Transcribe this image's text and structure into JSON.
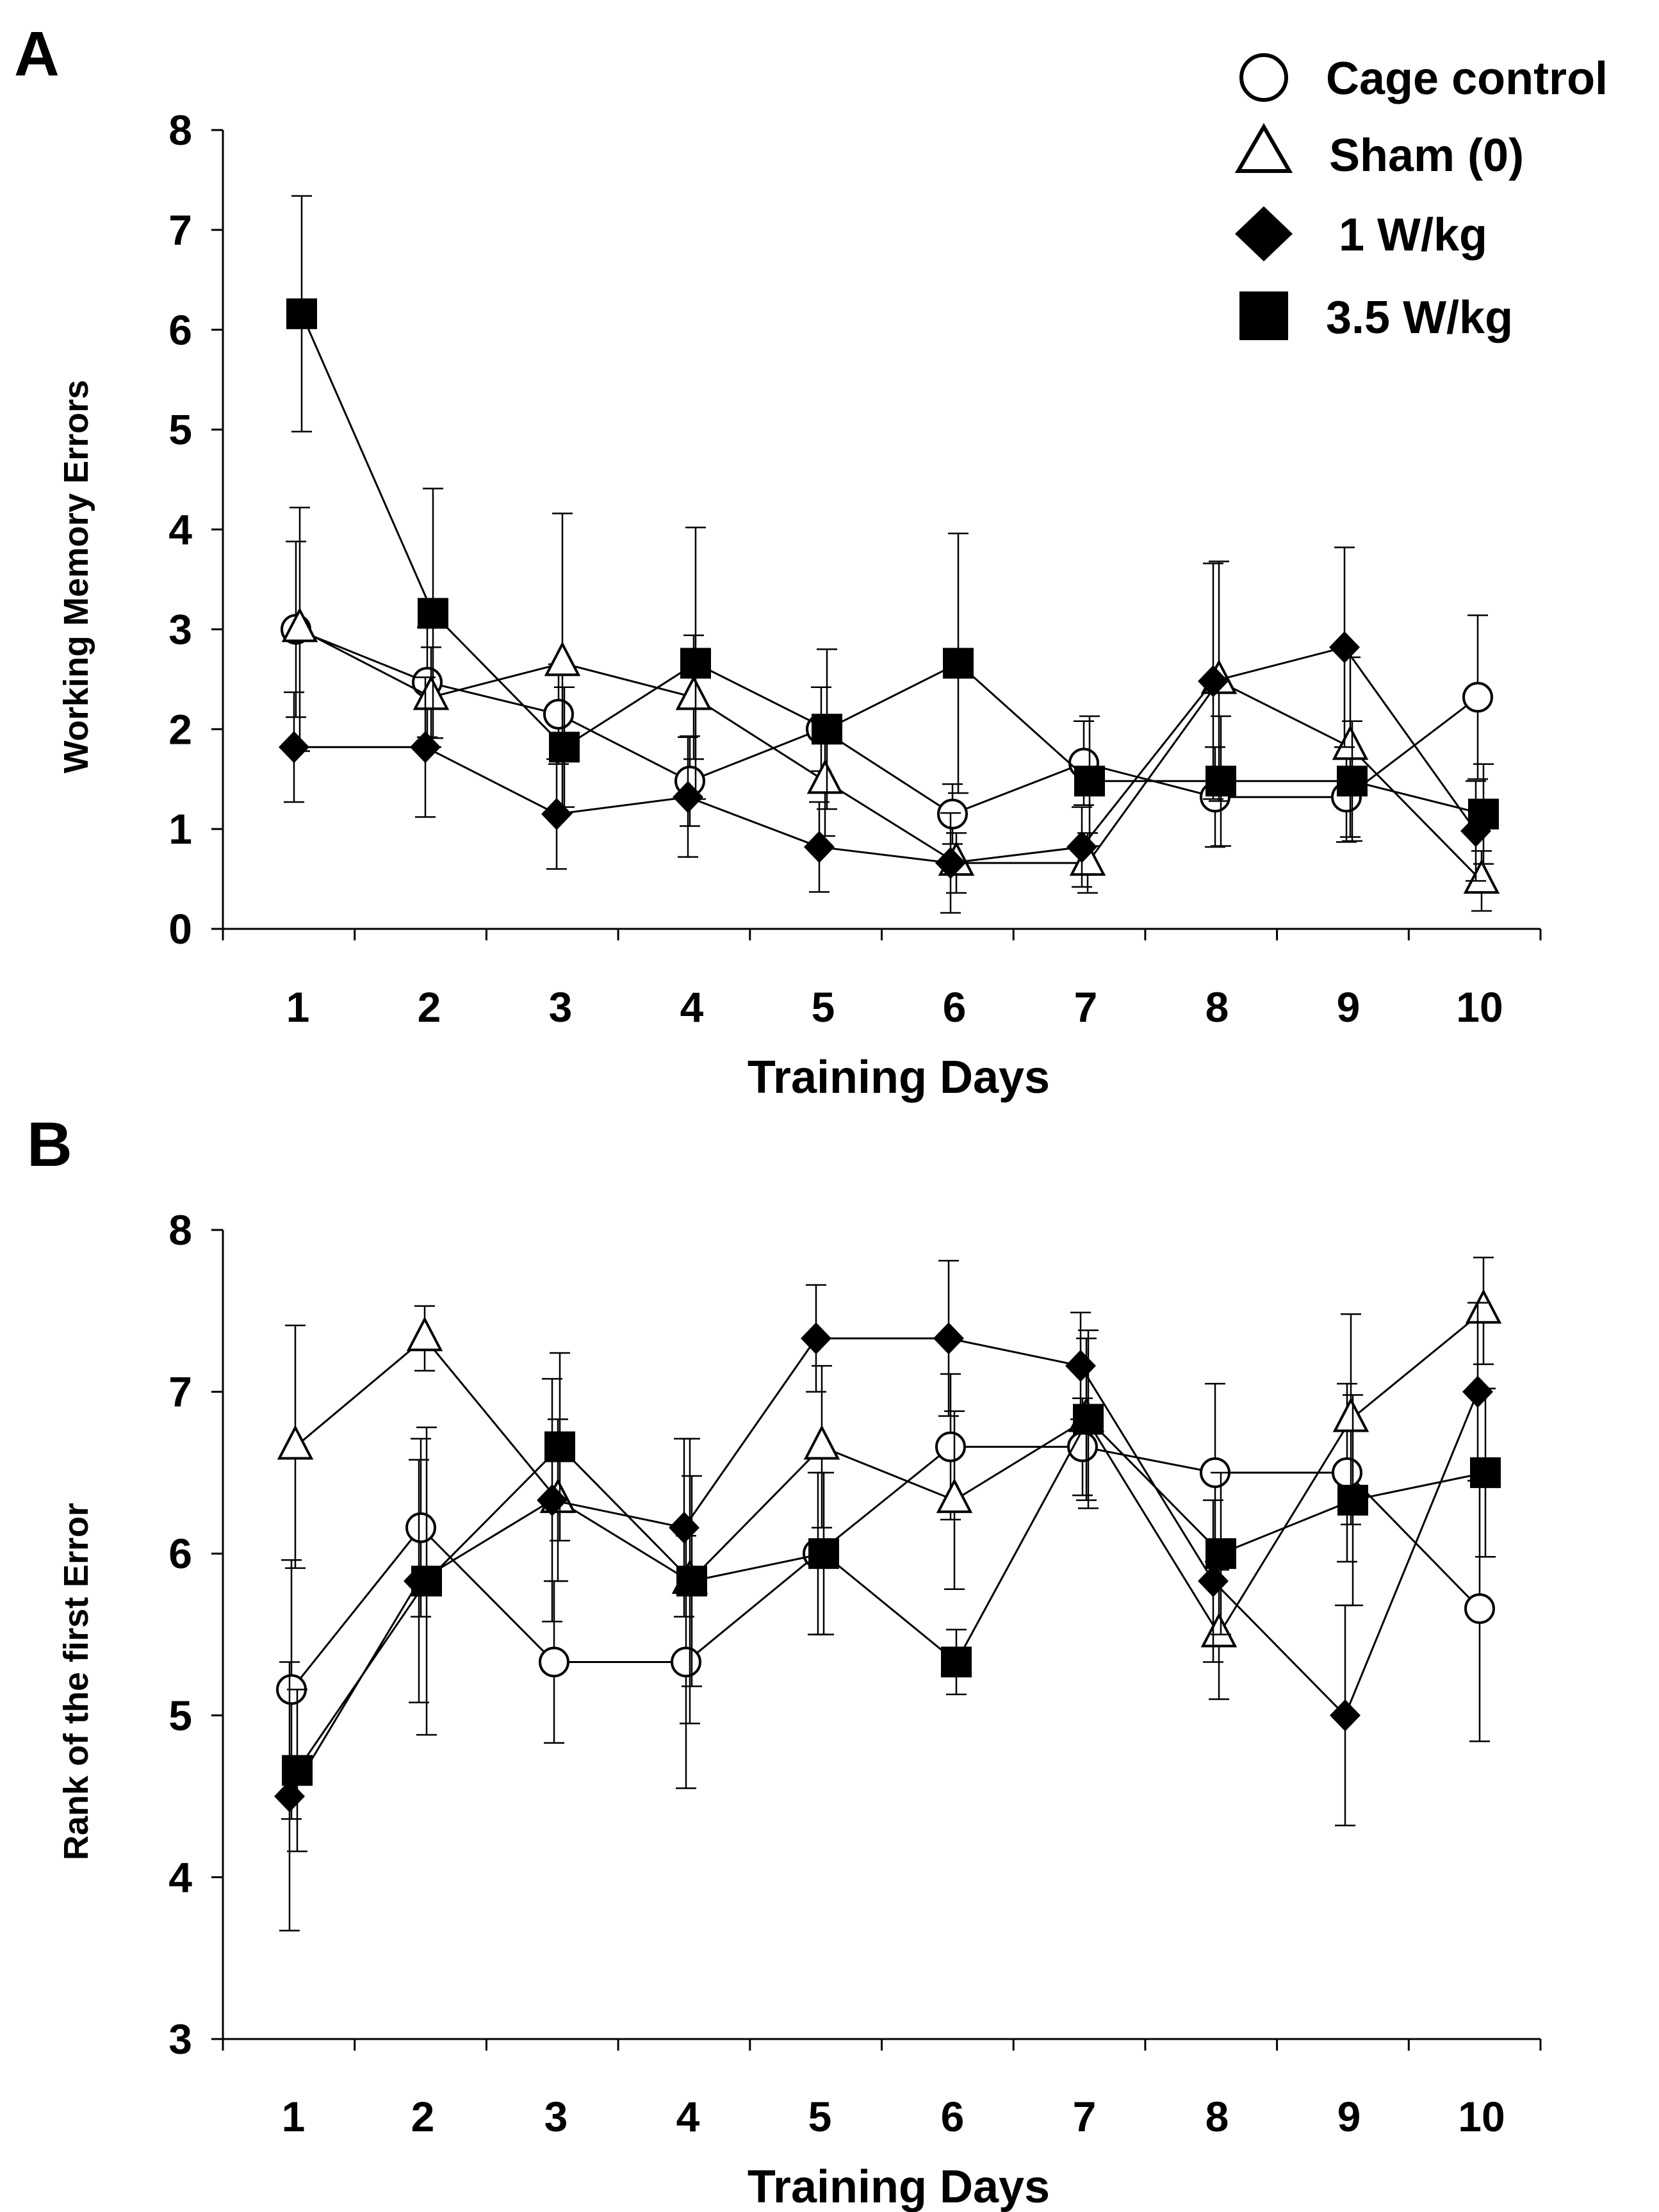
{
  "legend": [
    {
      "key": "cage",
      "label": "Cage control",
      "marker": "circle"
    },
    {
      "key": "sham",
      "label": "Sham (0)",
      "marker": "triangle"
    },
    {
      "key": "w1",
      "label": "1 W/kg",
      "marker": "diamond"
    },
    {
      "key": "w35",
      "label": "3.5 W/kg",
      "marker": "square"
    }
  ],
  "colors": {
    "marker_fill_open": "#ffffff",
    "marker_fill_solid": "#000000",
    "line": "#000000"
  },
  "chart_data": [
    {
      "type": "line",
      "panel": "A",
      "xlabel": "Training Days",
      "ylabel": "Working Memory Errors",
      "categories": [
        "1",
        "2",
        "3",
        "4",
        "5",
        "6",
        "7",
        "8",
        "9",
        "10"
      ],
      "yticks": [
        "0",
        "1",
        "2",
        "3",
        "4",
        "5",
        "6",
        "7",
        "8"
      ],
      "ylim": [
        0,
        8
      ],
      "grid": false,
      "legend_position": "top-right",
      "series": [
        {
          "name": "Cage control",
          "marker": "circle",
          "values": [
            3.0,
            2.47,
            2.15,
            1.48,
            2.0,
            1.15,
            1.66,
            1.32,
            1.32,
            2.32
          ],
          "err": [
            0.88,
            0.55,
            0.5,
            0.45,
            0.42,
            0.3,
            0.42,
            0.5,
            0.45,
            0.82
          ]
        },
        {
          "name": "Sham (0)",
          "marker": "triangle",
          "values": [
            3.0,
            2.32,
            2.66,
            2.32,
            1.48,
            0.66,
            0.66,
            2.48,
            1.82,
            0.48
          ],
          "err": [
            1.22,
            0.5,
            1.5,
            0.62,
            0.55,
            0.3,
            0.3,
            1.2,
            0.9,
            0.3
          ]
        },
        {
          "name": "1 W/kg",
          "marker": "diamond",
          "values": [
            1.82,
            1.82,
            1.15,
            1.32,
            0.82,
            0.66,
            0.82,
            2.48,
            2.82,
            0.98
          ],
          "err": [
            0.55,
            0.7,
            0.55,
            0.6,
            0.45,
            0.5,
            0.4,
            1.18,
            1.0,
            0.5
          ]
        },
        {
          "name": "3.5 W/kg",
          "marker": "square",
          "values": [
            6.16,
            3.16,
            1.82,
            2.66,
            2.0,
            2.66,
            1.48,
            1.48,
            1.48,
            1.15
          ],
          "err": [
            1.18,
            1.25,
            0.6,
            1.36,
            0.8,
            1.3,
            0.65,
            0.65,
            0.6,
            0.5
          ]
        }
      ]
    },
    {
      "type": "line",
      "panel": "B",
      "xlabel": "Training Days",
      "ylabel": "Rank of the first Error",
      "categories": [
        "1",
        "2",
        "3",
        "4",
        "5",
        "6",
        "7",
        "8",
        "9",
        "10"
      ],
      "yticks": [
        "3",
        "4",
        "5",
        "6",
        "7",
        "8"
      ],
      "ylim": [
        3,
        8
      ],
      "grid": false,
      "series": [
        {
          "name": "Cage control",
          "marker": "circle",
          "values": [
            5.16,
            6.16,
            5.33,
            5.33,
            6.0,
            6.66,
            6.66,
            6.5,
            6.5,
            5.66
          ],
          "err": [
            0.8,
            0.55,
            0.5,
            0.78,
            0.5,
            0.45,
            0.3,
            0.55,
            0.55,
            0.82
          ]
        },
        {
          "name": "Sham (0)",
          "marker": "triangle",
          "values": [
            6.66,
            7.33,
            6.33,
            5.83,
            6.66,
            6.33,
            6.83,
            5.5,
            6.83,
            7.5
          ],
          "err": [
            0.75,
            0.2,
            0.5,
            0.88,
            0.5,
            0.55,
            0.5,
            0.4,
            0.65,
            0.33
          ]
        },
        {
          "name": "1 W/kg",
          "marker": "diamond",
          "values": [
            4.5,
            5.83,
            6.33,
            6.16,
            7.33,
            7.33,
            7.16,
            5.83,
            5.0,
            7.0
          ],
          "err": [
            0.83,
            0.75,
            0.75,
            0.55,
            0.33,
            0.48,
            0.33,
            0.5,
            0.68,
            0.55
          ]
        },
        {
          "name": "3.5 W/kg",
          "marker": "square",
          "values": [
            4.66,
            5.83,
            6.66,
            5.83,
            6.0,
            5.33,
            6.83,
            6.0,
            6.33,
            6.5
          ],
          "err": [
            0.5,
            0.95,
            0.58,
            0.65,
            0.5,
            0.2,
            0.55,
            0.5,
            0.65,
            0.52
          ]
        }
      ]
    }
  ]
}
